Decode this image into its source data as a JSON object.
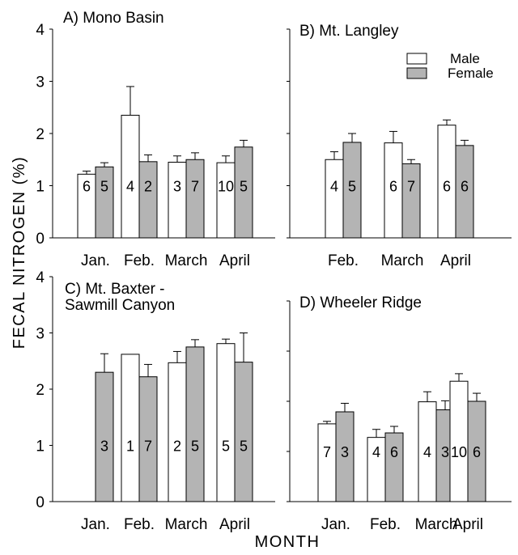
{
  "figure": {
    "ylabel": "FECAL NITROGEN (%)",
    "xlabel": "MONTH"
  },
  "legend": [
    {
      "label": "Male",
      "color": "#ffffff"
    },
    {
      "label": "Female",
      "color": "#b4b4b4"
    }
  ],
  "colors": {
    "male": "#ffffff",
    "female": "#b4b4b4",
    "axis": "#000000"
  },
  "chart_data": [
    {
      "type": "bar",
      "title": "A) Mono Basin",
      "categories": [
        "Jan.",
        "Feb.",
        "March",
        "April"
      ],
      "ylim": [
        0,
        4
      ],
      "yticks": [
        "0",
        "1",
        "2",
        "3",
        "4"
      ],
      "series": [
        {
          "name": "Male",
          "values": [
            1.22,
            2.35,
            1.45,
            1.44
          ],
          "errors": [
            0.06,
            0.55,
            0.12,
            0.13
          ],
          "n": [
            "6",
            "4",
            "3",
            "10"
          ]
        },
        {
          "name": "Female",
          "values": [
            1.36,
            1.46,
            1.5,
            1.74
          ],
          "errors": [
            0.08,
            0.13,
            0.13,
            0.13
          ],
          "n": [
            "5",
            "2",
            "7",
            "5"
          ]
        }
      ]
    },
    {
      "type": "bar",
      "title": "B) Mt. Langley",
      "categories": [
        "Feb.",
        "March",
        "April"
      ],
      "ylim": [
        0,
        4
      ],
      "yticks": [],
      "series": [
        {
          "name": "Male",
          "values": [
            1.5,
            1.82,
            2.16
          ],
          "errors": [
            0.15,
            0.22,
            0.1
          ],
          "n": [
            "4",
            "6",
            "6"
          ]
        },
        {
          "name": "Female",
          "values": [
            1.83,
            1.42,
            1.77
          ],
          "errors": [
            0.17,
            0.08,
            0.1
          ],
          "n": [
            "5",
            "7",
            "6"
          ]
        }
      ]
    },
    {
      "type": "bar",
      "title": "C) Mt. Baxter - Sawmill Canyon",
      "title_lines": [
        "C) Mt. Baxter -",
        "Sawmill Canyon"
      ],
      "categories": [
        "Jan.",
        "Feb.",
        "March",
        "April"
      ],
      "ylim": [
        0,
        4
      ],
      "yticks": [
        "0",
        "1",
        "2",
        "3",
        "4"
      ],
      "series": [
        {
          "name": "Male",
          "values": [
            null,
            2.62,
            2.47,
            2.81
          ],
          "errors": [
            null,
            0,
            0.2,
            0.08
          ],
          "n": [
            "",
            "1",
            "2",
            "5"
          ]
        },
        {
          "name": "Female",
          "values": [
            2.3,
            2.22,
            2.75,
            2.48
          ],
          "errors": [
            0.33,
            0.22,
            0.13,
            0.52
          ],
          "n": [
            "3",
            "7",
            "5",
            "5"
          ]
        }
      ]
    },
    {
      "type": "bar",
      "title": "D) Wheeler Ridge",
      "categories": [
        "Jan.",
        "Feb.",
        "March",
        "April"
      ],
      "ylim": [
        0,
        4
      ],
      "yticks": [],
      "series": [
        {
          "name": "Male",
          "values": [
            1.55,
            1.28,
            1.99,
            2.4
          ],
          "errors": [
            0.05,
            0.16,
            0.2,
            0.15
          ],
          "n": [
            "7",
            "4",
            "4",
            "10"
          ]
        },
        {
          "name": "Female",
          "values": [
            1.79,
            1.37,
            1.83,
            2.0
          ],
          "errors": [
            0.17,
            0.13,
            0.18,
            0.16
          ],
          "n": [
            "3",
            "6",
            "3",
            "6"
          ]
        }
      ]
    }
  ]
}
